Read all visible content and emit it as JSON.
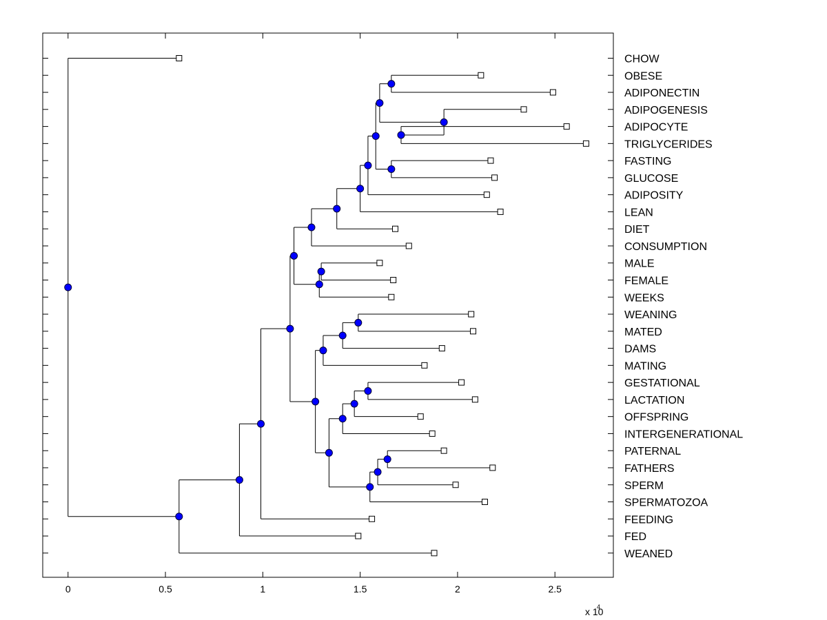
{
  "chart_data": {
    "type": "dendrogram",
    "orientation": "horizontal",
    "x_axis": {
      "ticks": [
        0,
        0.5,
        1,
        1.5,
        2,
        2.5
      ],
      "tick_labels": [
        "0",
        "0.5",
        "1",
        "1.5",
        "2",
        "2.5"
      ],
      "xlim": [
        -0.13,
        2.8
      ],
      "exponent_label": "x 10",
      "exponent_power": "4",
      "scale": 10000
    },
    "leaves": [
      {
        "label": "CHOW",
        "x": 0.57
      },
      {
        "label": "OBESE",
        "x": 2.12
      },
      {
        "label": "ADIPONECTIN",
        "x": 2.49
      },
      {
        "label": "ADIPOGENESIS",
        "x": 2.34
      },
      {
        "label": "ADIPOCYTE",
        "x": 2.56
      },
      {
        "label": "TRIGLYCERIDES",
        "x": 2.66
      },
      {
        "label": "FASTING",
        "x": 2.17
      },
      {
        "label": "GLUCOSE",
        "x": 2.19
      },
      {
        "label": "ADIPOSITY",
        "x": 2.15
      },
      {
        "label": "LEAN",
        "x": 2.22
      },
      {
        "label": "DIET",
        "x": 1.68
      },
      {
        "label": "CONSUMPTION",
        "x": 1.75
      },
      {
        "label": "MALE",
        "x": 1.6
      },
      {
        "label": "FEMALE",
        "x": 1.67
      },
      {
        "label": "WEEKS",
        "x": 1.66
      },
      {
        "label": "WEANING",
        "x": 2.07
      },
      {
        "label": "MATED",
        "x": 2.08
      },
      {
        "label": "DAMS",
        "x": 1.92
      },
      {
        "label": "MATING",
        "x": 1.83
      },
      {
        "label": "GESTATIONAL",
        "x": 2.02
      },
      {
        "label": "LACTATION",
        "x": 2.09
      },
      {
        "label": "OFFSPRING",
        "x": 1.81
      },
      {
        "label": "INTERGENERATIONAL",
        "x": 1.87
      },
      {
        "label": "PATERNAL",
        "x": 1.93
      },
      {
        "label": "FATHERS",
        "x": 2.18
      },
      {
        "label": "SPERM",
        "x": 1.99
      },
      {
        "label": "SPERMATOZOA",
        "x": 2.14
      },
      {
        "label": "FEEDING",
        "x": 1.56
      },
      {
        "label": "FED",
        "x": 1.49
      },
      {
        "label": "WEANED",
        "x": 1.88
      }
    ],
    "nodes": [
      {
        "id": "n_obese_adiponectin",
        "x": 1.66,
        "children": [
          "OBESE",
          "ADIPONECTIN"
        ]
      },
      {
        "id": "n_adipocyte_trig",
        "x": 1.71,
        "children": [
          "ADIPOCYTE",
          "TRIGLYCERIDES"
        ]
      },
      {
        "id": "n_adipogenesis_group",
        "x": 1.93,
        "children": [
          "ADIPOGENESIS",
          "n_adipocyte_trig"
        ]
      },
      {
        "id": "n_adipo_top",
        "x": 1.6,
        "children": [
          "n_obese_adiponectin",
          "n_adipogenesis_group"
        ]
      },
      {
        "id": "n_fasting_glucose",
        "x": 1.66,
        "children": [
          "FASTING",
          "GLUCOSE"
        ]
      },
      {
        "id": "n_adipo_fasting",
        "x": 1.58,
        "children": [
          "n_adipo_top",
          "n_fasting_glucose"
        ]
      },
      {
        "id": "n_adiposity",
        "x": 1.54,
        "children": [
          "n_adipo_fasting",
          "ADIPOSITY"
        ]
      },
      {
        "id": "n_lean",
        "x": 1.5,
        "children": [
          "n_adiposity",
          "LEAN"
        ]
      },
      {
        "id": "n_diet",
        "x": 1.38,
        "children": [
          "n_lean",
          "DIET"
        ]
      },
      {
        "id": "n_consumption",
        "x": 1.25,
        "children": [
          "n_diet",
          "CONSUMPTION"
        ]
      },
      {
        "id": "n_male_female",
        "x": 1.3,
        "children": [
          "MALE",
          "FEMALE"
        ]
      },
      {
        "id": "n_weeks",
        "x": 1.29,
        "children": [
          "n_male_female",
          "WEEKS"
        ]
      },
      {
        "id": "n_upper",
        "x": 1.16,
        "children": [
          "n_consumption",
          "n_weeks"
        ]
      },
      {
        "id": "n_weaning_mated",
        "x": 1.49,
        "children": [
          "WEANING",
          "MATED"
        ]
      },
      {
        "id": "n_dams",
        "x": 1.41,
        "children": [
          "n_weaning_mated",
          "DAMS"
        ]
      },
      {
        "id": "n_mating",
        "x": 1.31,
        "children": [
          "n_dams",
          "MATING"
        ]
      },
      {
        "id": "n_gest_lact",
        "x": 1.54,
        "children": [
          "GESTATIONAL",
          "LACTATION"
        ]
      },
      {
        "id": "n_offspring",
        "x": 1.47,
        "children": [
          "n_gest_lact",
          "OFFSPRING"
        ]
      },
      {
        "id": "n_intergen",
        "x": 1.41,
        "children": [
          "n_offspring",
          "INTERGENERATIONAL"
        ]
      },
      {
        "id": "n_paternal_fathers",
        "x": 1.64,
        "children": [
          "PATERNAL",
          "FATHERS"
        ]
      },
      {
        "id": "n_sperm",
        "x": 1.59,
        "children": [
          "n_paternal_fathers",
          "SPERM"
        ]
      },
      {
        "id": "n_spermatozoa",
        "x": 1.55,
        "children": [
          "n_sperm",
          "SPERMATOZOA"
        ]
      },
      {
        "id": "n_inter_sperm",
        "x": 1.34,
        "children": [
          "n_intergen",
          "n_spermatozoa"
        ]
      },
      {
        "id": "n_repro",
        "x": 1.27,
        "children": [
          "n_mating",
          "n_inter_sperm"
        ]
      },
      {
        "id": "n_middle",
        "x": 1.14,
        "children": [
          "n_upper",
          "n_repro"
        ]
      },
      {
        "id": "n_feeding",
        "x": 0.99,
        "children": [
          "n_middle",
          "FEEDING"
        ]
      },
      {
        "id": "n_fed",
        "x": 0.88,
        "children": [
          "n_feeding",
          "FED"
        ]
      },
      {
        "id": "n_weaned",
        "x": 0.57,
        "children": [
          "n_fed",
          "WEANED"
        ]
      },
      {
        "id": "n_root",
        "x": 0.0,
        "children": [
          "CHOW",
          "n_weaned"
        ]
      }
    ],
    "colors": {
      "node_fill": "#0000ff",
      "line": "#000000",
      "leaf_marker_fill": "#ffffff"
    }
  }
}
